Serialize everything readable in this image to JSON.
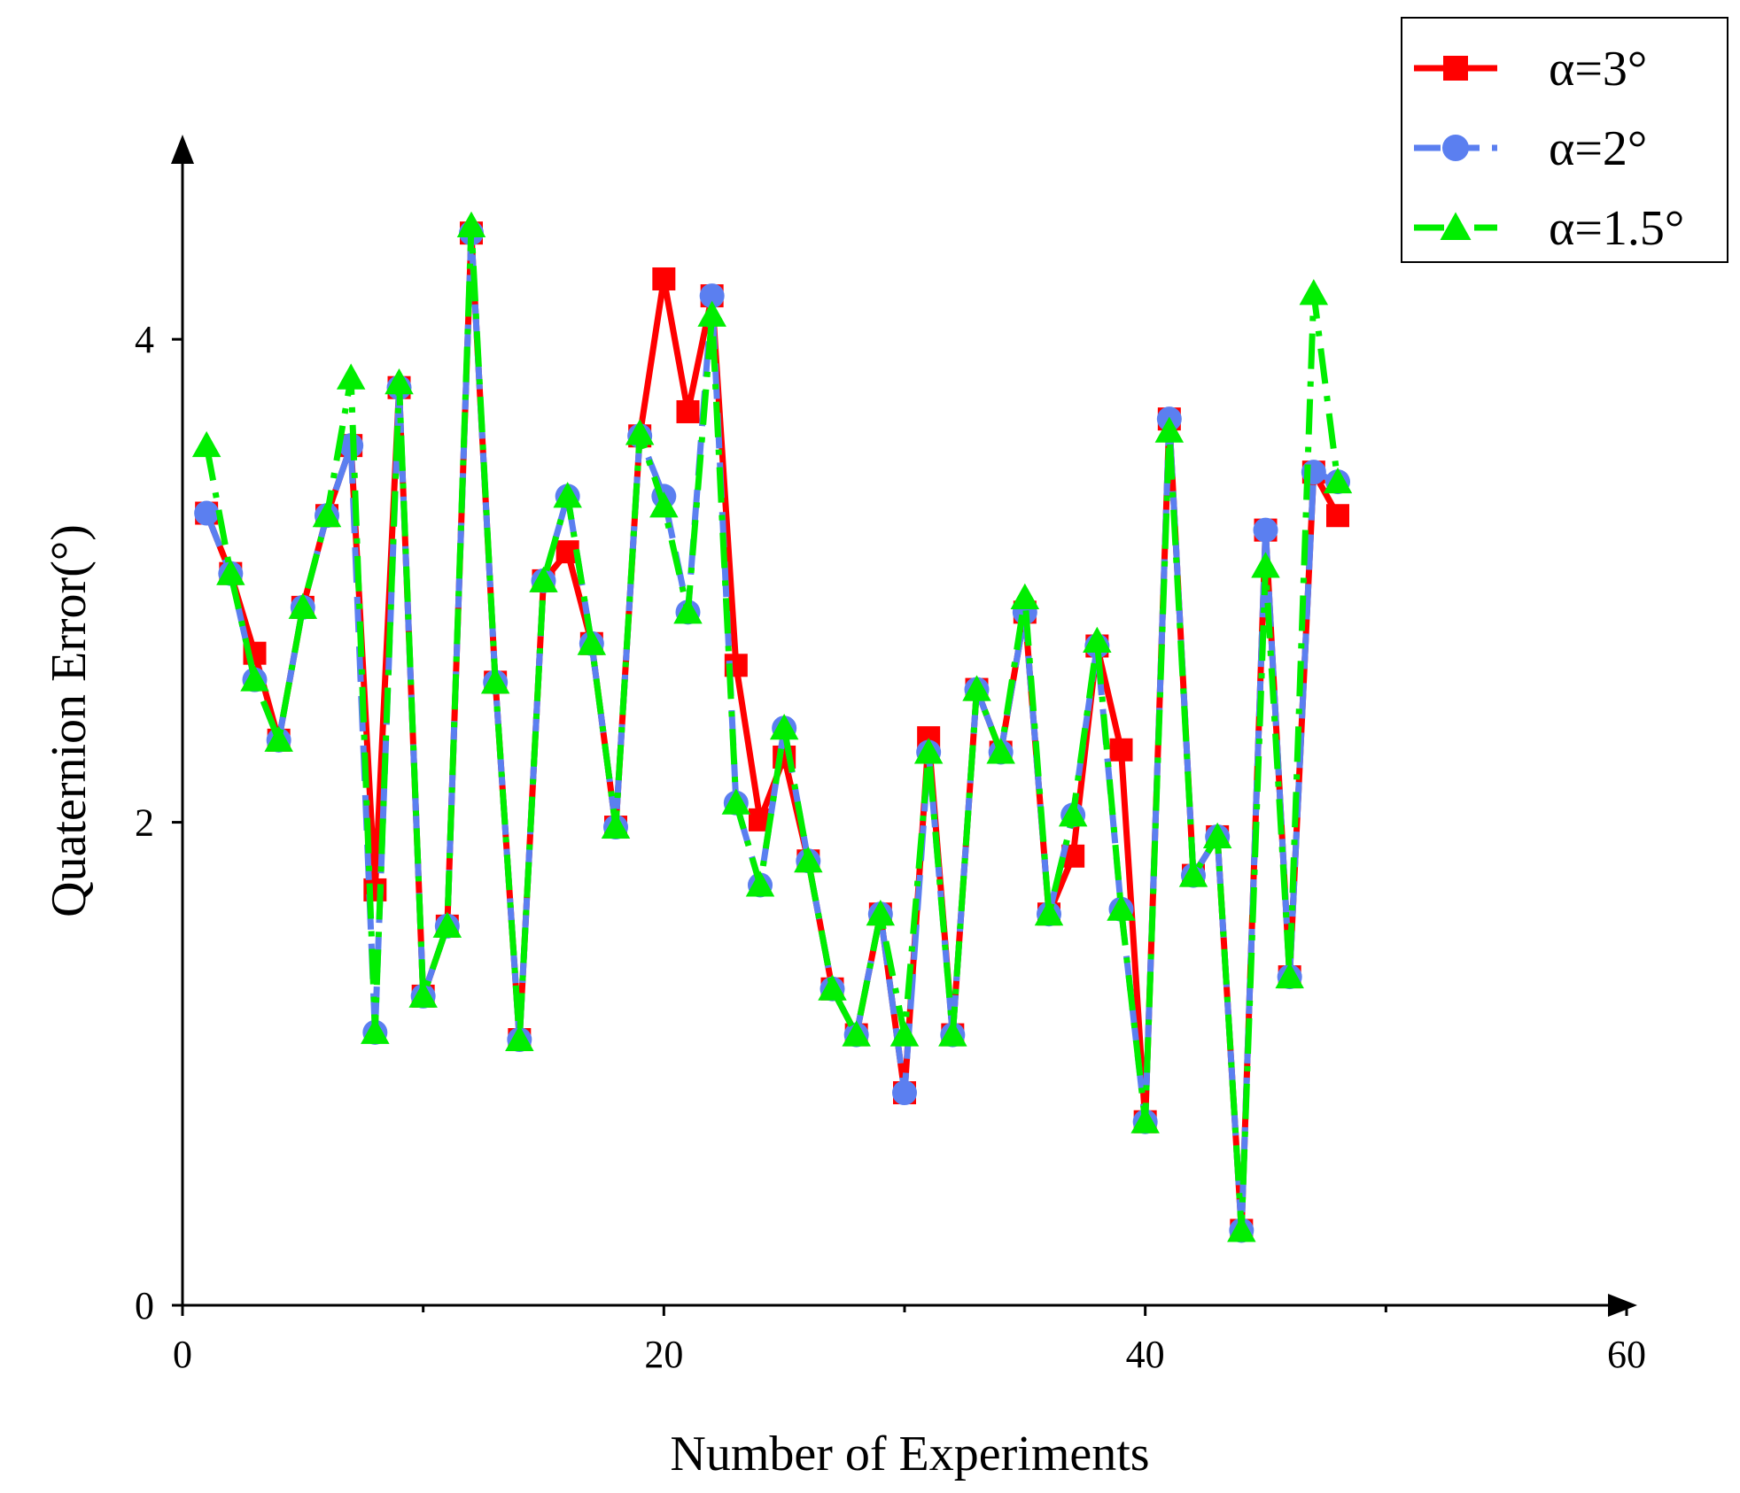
{
  "chart_data": {
    "type": "line",
    "title": "",
    "xlabel": "Number of Experiments",
    "ylabel": "Quaternion Error(°)",
    "xlim": [
      0,
      60
    ],
    "ylim": [
      0,
      4.8
    ],
    "xticks": [
      0,
      20,
      40,
      60
    ],
    "xticks_minor": [
      10,
      30,
      50
    ],
    "yticks": [
      0,
      2,
      4
    ],
    "x": [
      1,
      2,
      3,
      4,
      5,
      6,
      7,
      8,
      9,
      10,
      11,
      12,
      13,
      14,
      15,
      16,
      17,
      18,
      19,
      20,
      21,
      22,
      23,
      24,
      25,
      26,
      27,
      28,
      29,
      30,
      31,
      32,
      33,
      34,
      35,
      36,
      37,
      38,
      39,
      40,
      41,
      42,
      43,
      44,
      45,
      46,
      47,
      48
    ],
    "legend_position": "top-right",
    "series": [
      {
        "name": "α=3°",
        "color": "#ff0000",
        "marker": "square",
        "dash": "solid",
        "values": [
          3.28,
          3.03,
          2.7,
          2.34,
          2.89,
          3.27,
          3.56,
          1.72,
          3.8,
          1.28,
          1.57,
          4.44,
          2.58,
          1.1,
          3.0,
          3.12,
          2.74,
          1.98,
          3.6,
          4.25,
          3.7,
          4.18,
          2.65,
          2.01,
          2.27,
          1.84,
          1.31,
          1.12,
          1.62,
          0.88,
          2.35,
          1.12,
          2.55,
          2.29,
          2.87,
          1.62,
          1.86,
          2.73,
          2.3,
          0.76,
          3.67,
          1.78,
          1.94,
          0.31,
          3.21,
          1.36,
          3.45,
          3.27
        ]
      },
      {
        "name": "α=2°",
        "color": "#5b7ff0",
        "marker": "circle",
        "dash": "dashed",
        "values": [
          3.28,
          3.03,
          2.59,
          2.34,
          2.89,
          3.27,
          3.56,
          1.13,
          3.8,
          1.28,
          1.57,
          4.44,
          2.58,
          1.1,
          3.0,
          3.35,
          2.74,
          1.98,
          3.6,
          3.35,
          2.87,
          4.18,
          2.08,
          1.74,
          2.39,
          1.84,
          1.31,
          1.12,
          1.62,
          0.88,
          2.29,
          1.12,
          2.55,
          2.29,
          2.87,
          1.62,
          2.03,
          2.73,
          1.64,
          0.76,
          3.67,
          1.78,
          1.94,
          0.31,
          3.21,
          1.36,
          3.45,
          3.41
        ]
      },
      {
        "name": "α=1.5°",
        "color": "#00ee00",
        "marker": "triangle",
        "dash": "dashdot",
        "values": [
          3.56,
          3.03,
          2.59,
          2.34,
          2.89,
          3.27,
          3.84,
          1.13,
          3.82,
          1.28,
          1.57,
          4.47,
          2.58,
          1.1,
          3.0,
          3.35,
          2.74,
          1.98,
          3.61,
          3.31,
          2.87,
          4.1,
          2.08,
          1.74,
          2.39,
          1.84,
          1.31,
          1.12,
          1.62,
          1.12,
          2.29,
          1.12,
          2.55,
          2.29,
          2.93,
          1.62,
          2.03,
          2.75,
          1.64,
          0.76,
          3.62,
          1.78,
          1.94,
          0.31,
          3.06,
          1.36,
          4.19,
          3.41
        ]
      }
    ]
  }
}
